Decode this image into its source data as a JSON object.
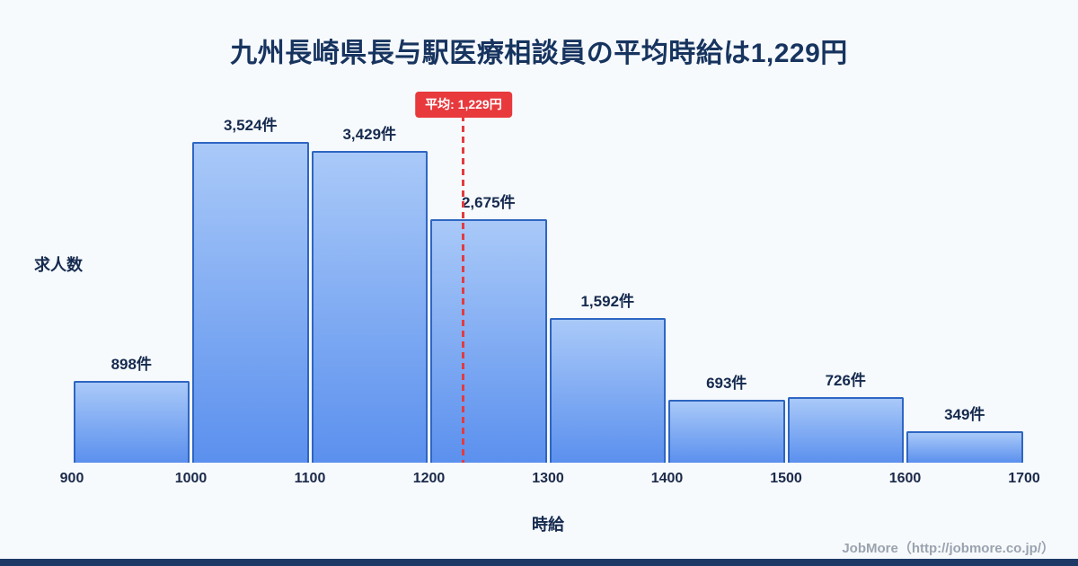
{
  "page": {
    "title": "九州長崎県長与駅医療相談員の平均時給は1,229円",
    "footer": "JobMore（http://jobmore.co.jp/）"
  },
  "chart_data": {
    "type": "bar",
    "title": "九州長崎県長与駅医療相談員の平均時給は1,229円",
    "xlabel": "時給",
    "ylabel": "求人数",
    "bin_edges": [
      900,
      1000,
      1100,
      1200,
      1300,
      1400,
      1500,
      1600,
      1700
    ],
    "categories": [
      "900-1000",
      "1000-1100",
      "1100-1200",
      "1200-1300",
      "1300-1400",
      "1400-1500",
      "1500-1600",
      "1600-1700"
    ],
    "values": [
      898,
      3524,
      3429,
      2675,
      1592,
      693,
      726,
      349
    ],
    "value_labels": [
      "898件",
      "3,524件",
      "3,429件",
      "2,675件",
      "1,592件",
      "693件",
      "726件",
      "349件"
    ],
    "x_ticks": [
      "900",
      "1000",
      "1100",
      "1200",
      "1300",
      "1400",
      "1500",
      "1600",
      "1700"
    ],
    "average": 1229,
    "average_label": "平均: 1,229円",
    "xlim": [
      900,
      1700
    ],
    "ylim": [
      0,
      4100
    ],
    "grid": false,
    "legend": "none",
    "colors": {
      "bar_gradient_top": "#a9c9f8",
      "bar_gradient_bottom": "#5b90ee",
      "bar_border": "#2e66c2",
      "average_line": "#e23c40",
      "average_badge_bg": "#e8393d",
      "average_badge_text": "#ffffff",
      "title_text": "#17345f",
      "axis_text": "#152a4e",
      "background": "#f7fafd",
      "footer_text": "#9aa3ae",
      "bottom_strip": "#1d3966"
    }
  }
}
